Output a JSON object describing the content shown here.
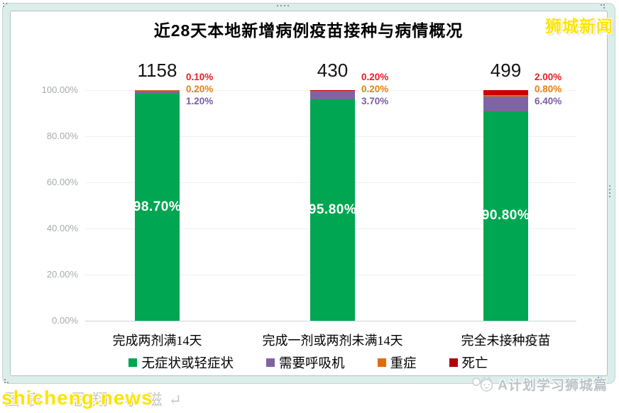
{
  "logo_top_right": "狮城新闻",
  "watermark": {
    "front_text": "shicheng.news",
    "behind_text": "图表：思翔 小磁↵"
  },
  "footer_credit": "A计划学习狮城篇",
  "chart_data": {
    "type": "bar",
    "stacked": true,
    "title": "近28天本地新增病例疫苗接种与病情概况",
    "categories": [
      "完成两剂满14天",
      "完成一剂或两剂未满14天",
      "完全未接种疫苗"
    ],
    "totals": [
      "1158",
      "430",
      "499"
    ],
    "series": [
      {
        "key": "asymptomatic-mild",
        "name": "无症状或轻症状",
        "values": [
          98.7,
          95.8,
          90.8
        ],
        "color": "#00a651",
        "legend_color": "#00a651",
        "label_color": "#ffffff"
      },
      {
        "key": "ventilator",
        "name": "需要呼吸机",
        "values": [
          1.2,
          3.7,
          6.4
        ],
        "color": "#8064a2",
        "legend_color": "#8064a2",
        "label_color": "#7d5ba6"
      },
      {
        "key": "severe",
        "name": "重症",
        "values": [
          0.2,
          0.2,
          0.8
        ],
        "color": "#e36c09",
        "legend_color": "#e36c09",
        "label_color": "#e8820c"
      },
      {
        "key": "death",
        "name": "死亡",
        "values": [
          0.1,
          0.2,
          2.0
        ],
        "color": "#cc0000",
        "legend_color": "#b00008",
        "label_color": "#ec1c24"
      }
    ],
    "bar_inner_labels": [
      "98.70%",
      "95.80%",
      "90.80%"
    ],
    "y_ticks": [
      "100.00%",
      "80.00%",
      "60.00%",
      "40.00%",
      "20.00%",
      "0.00%"
    ],
    "ylabel": "",
    "xlabel": "",
    "ylim": [
      0,
      100
    ],
    "grid": true,
    "legend_position": "bottom"
  }
}
